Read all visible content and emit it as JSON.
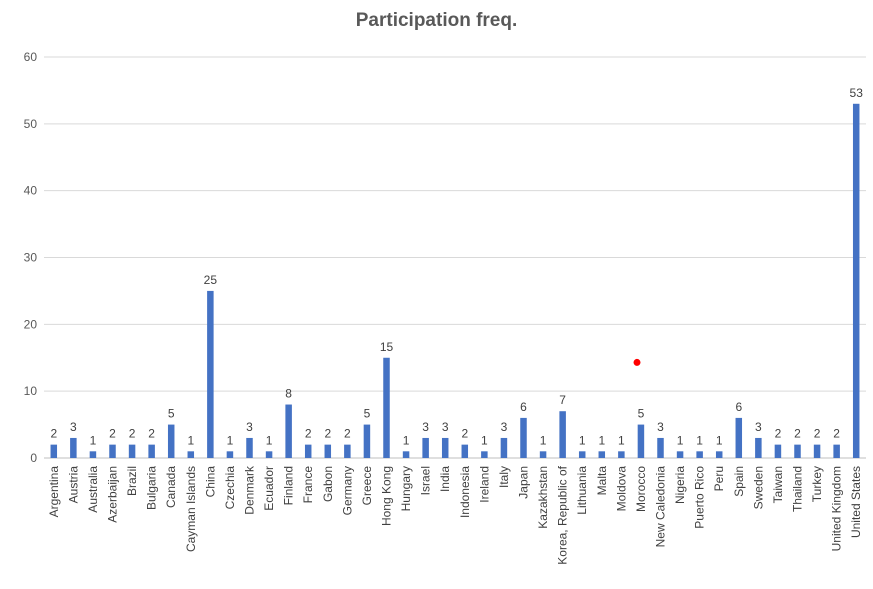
{
  "chart_data": {
    "type": "bar",
    "title": "Participation freq.",
    "xlabel": "",
    "ylabel": "",
    "ylim": [
      0,
      60
    ],
    "yticks": [
      0,
      10,
      20,
      30,
      40,
      50,
      60
    ],
    "grid": true,
    "legend": "none",
    "bar_color": "#4472c4",
    "marker_color": "#ff0000",
    "categories": [
      "Argentina",
      "Austria",
      "Australia",
      "Azerbaijan",
      "Brazil",
      "Bulgaria",
      "Canada",
      "Cayman Islands",
      "China",
      "Czechia",
      "Denmark",
      "Ecuador",
      "Finland",
      "France",
      "Gabon",
      "Germany",
      "Greece",
      "Hong Kong",
      "Hungary",
      "Israel",
      "India",
      "Indonesia",
      "Ireland",
      "Italy",
      "Japan",
      "Kazakhstan",
      "Korea, Republic of",
      "Lithuania",
      "Malta",
      "Moldova",
      "Morocco",
      "New Caledonia",
      "Nigeria",
      "Puerto Rico",
      "Peru",
      "Spain",
      "Sweden",
      "Taiwan",
      "Thailand",
      "Turkey",
      "United Kingdom",
      "United States"
    ],
    "values": [
      2,
      3,
      1,
      2,
      2,
      2,
      5,
      1,
      25,
      1,
      3,
      1,
      8,
      2,
      2,
      2,
      5,
      15,
      1,
      3,
      3,
      2,
      1,
      3,
      6,
      1,
      7,
      1,
      1,
      1,
      5,
      3,
      1,
      1,
      1,
      6,
      3,
      2,
      2,
      2,
      2,
      53
    ],
    "marker_point": {
      "category_position": 29.8,
      "value": 14.3
    }
  }
}
